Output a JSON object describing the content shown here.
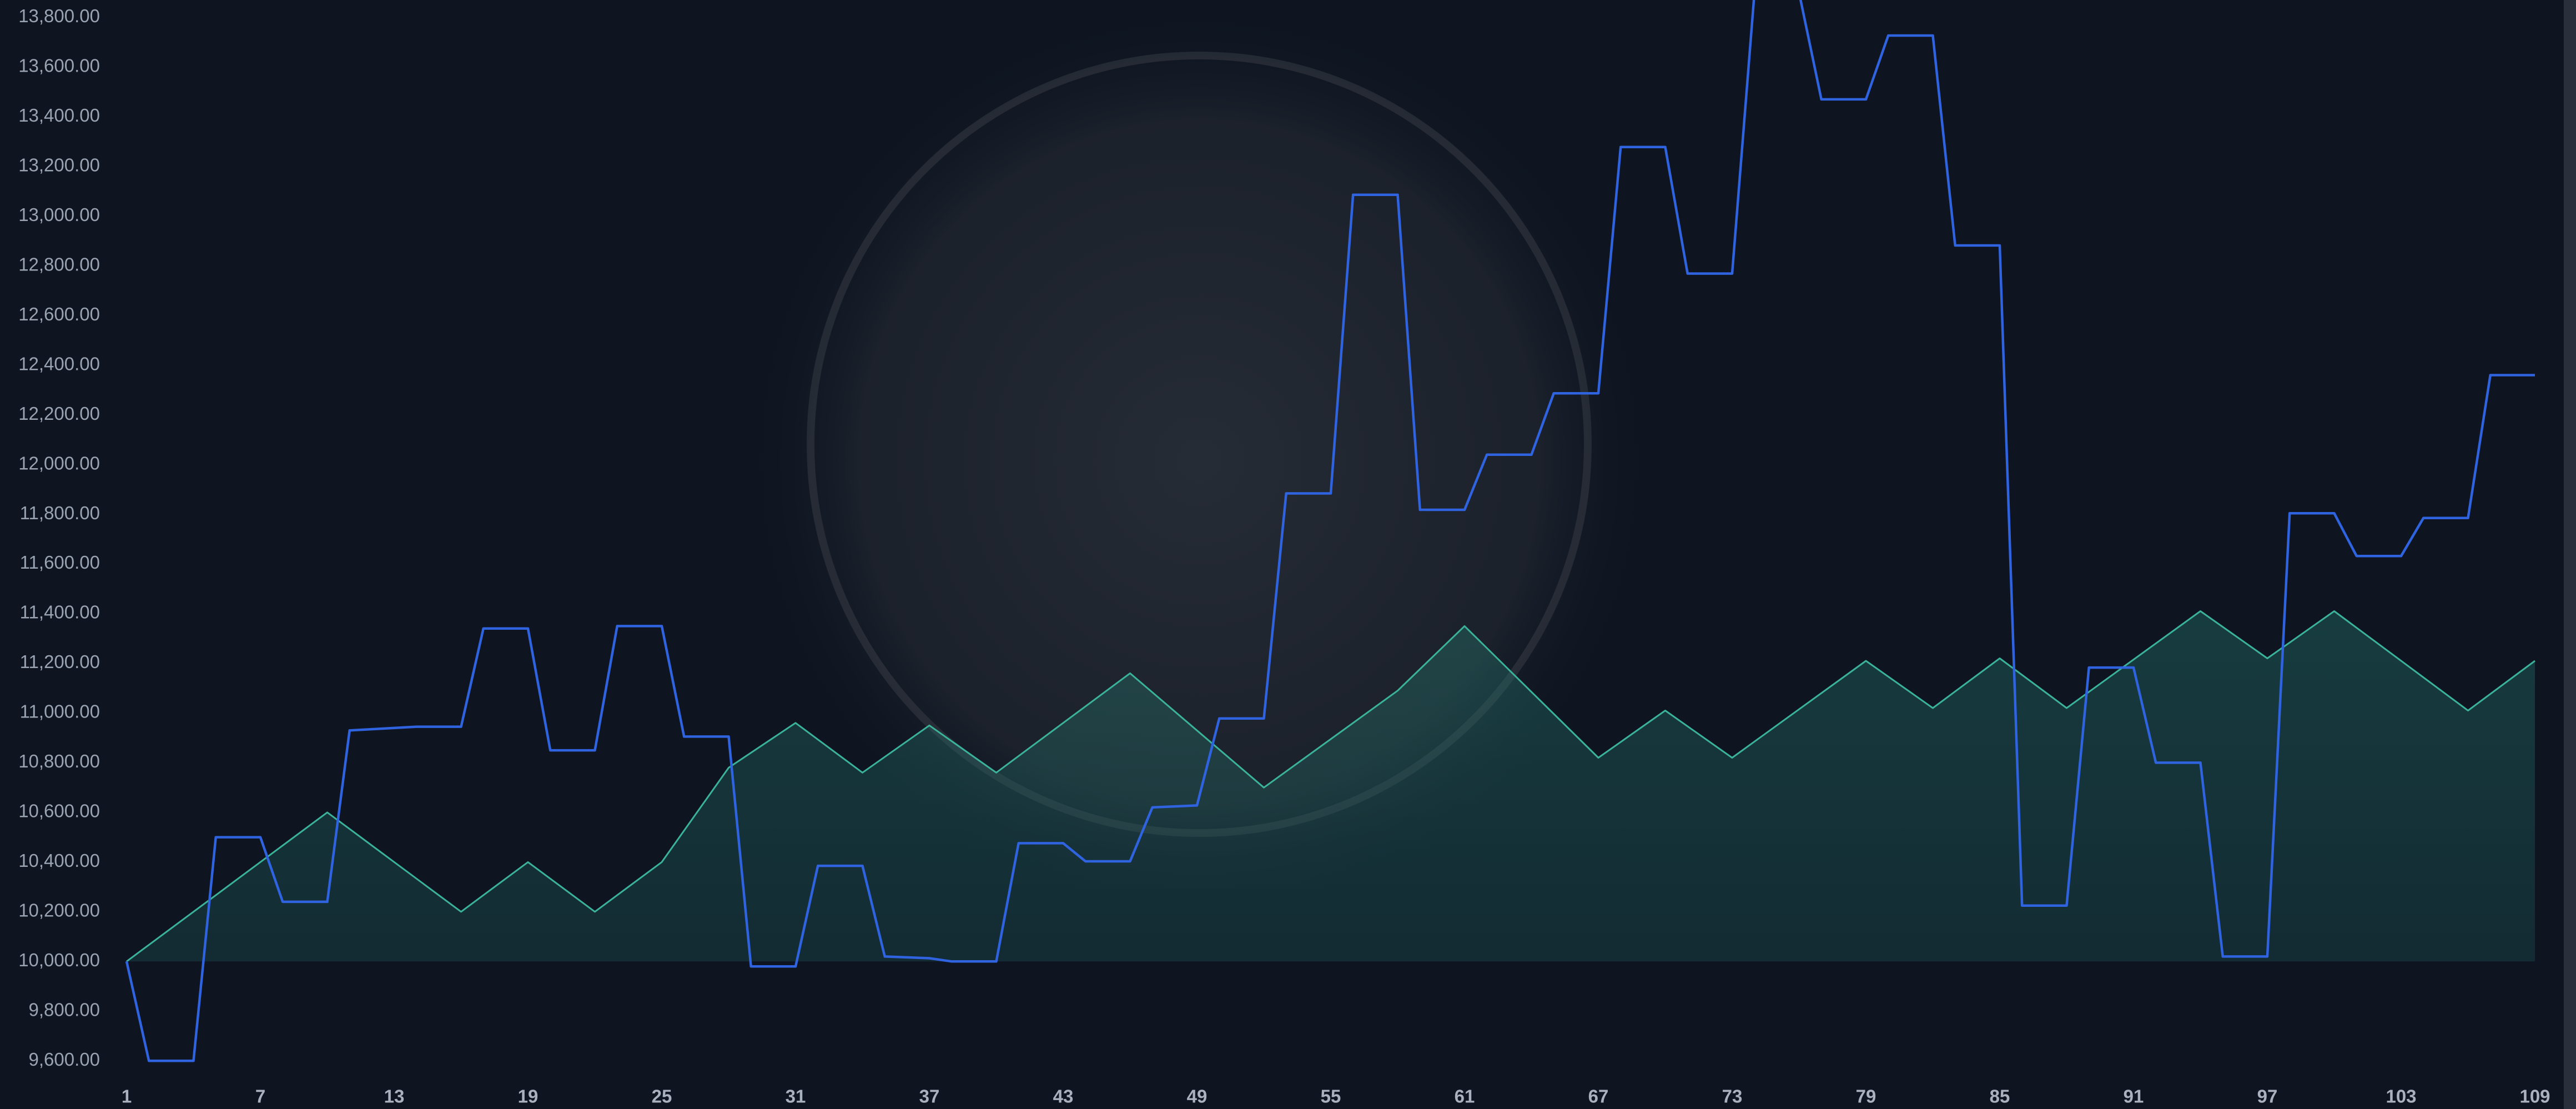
{
  "chart_data": {
    "type": "line",
    "xlim": [
      1,
      109
    ],
    "xticks": [
      1,
      7,
      13,
      19,
      25,
      31,
      37,
      43,
      49,
      55,
      61,
      67,
      73,
      79,
      85,
      91,
      97,
      103,
      109
    ],
    "ylim": [
      9500,
      13870
    ],
    "yticks": [
      {
        "value": 9600,
        "label": "9,600.00"
      },
      {
        "value": 9800,
        "label": "9,800.00"
      },
      {
        "value": 10000,
        "label": "10,000.00"
      },
      {
        "value": 10200,
        "label": "10,200.00"
      },
      {
        "value": 10400,
        "label": "10,400.00"
      },
      {
        "value": 10600,
        "label": "10,600.00"
      },
      {
        "value": 10800,
        "label": "10,800.00"
      },
      {
        "value": 11000,
        "label": "11,000.00"
      },
      {
        "value": 11200,
        "label": "11,200.00"
      },
      {
        "value": 11400,
        "label": "11,400.00"
      },
      {
        "value": 11600,
        "label": "11,600.00"
      },
      {
        "value": 11800,
        "label": "11,800.00"
      },
      {
        "value": 12000,
        "label": "12,000.00"
      },
      {
        "value": 12200,
        "label": "12,200.00"
      },
      {
        "value": 12400,
        "label": "12,400.00"
      },
      {
        "value": 12600,
        "label": "12,600.00"
      },
      {
        "value": 12800,
        "label": "12,800.00"
      },
      {
        "value": 13000,
        "label": "13,000.00"
      },
      {
        "value": 13200,
        "label": "13,200.00"
      },
      {
        "value": 13400,
        "label": "13,400.00"
      },
      {
        "value": 13600,
        "label": "13,600.00"
      },
      {
        "value": 13800,
        "label": "13,800.00"
      }
    ],
    "series": [
      {
        "color": "#3bb39a",
        "fill": true,
        "x": [
          1,
          10,
          16,
          19,
          22,
          25,
          28,
          31,
          34,
          37,
          40,
          46,
          52,
          58,
          61,
          67,
          70,
          73,
          79,
          82,
          85,
          88,
          94,
          97,
          100,
          106,
          109
        ],
        "values": [
          10000,
          10600,
          10200,
          10400,
          10200,
          10400,
          10780,
          10960,
          10760,
          10950,
          10760,
          11160,
          10700,
          11090,
          11350,
          10820,
          11010,
          10820,
          11210,
          11020,
          11220,
          11020,
          11410,
          11220,
          11410,
          11010,
          11210
        ]
      },
      {
        "color": "#2f63e0",
        "fill": false,
        "x": [
          1,
          2,
          4,
          5,
          7,
          8,
          10,
          11,
          14,
          16,
          17,
          19,
          20,
          22,
          23,
          25,
          26,
          28,
          29,
          31,
          32,
          34,
          35,
          37,
          38,
          40,
          41,
          43,
          44,
          46,
          47,
          49,
          50,
          52,
          53,
          55,
          56,
          58,
          59,
          61,
          62,
          64,
          65,
          67,
          68,
          70,
          71,
          73,
          74,
          76,
          77,
          79,
          80,
          82,
          83,
          85,
          86,
          88,
          89,
          91,
          92,
          94,
          95,
          97,
          98,
          100,
          101,
          103,
          104,
          106,
          107,
          109
        ],
        "values": [
          10000,
          9600,
          9600,
          10500,
          10500,
          10240,
          10240,
          10930,
          10945,
          10945,
          11340,
          11340,
          10850,
          10850,
          11350,
          11350,
          10905,
          10905,
          9980,
          9980,
          10385,
          10385,
          10020,
          10013,
          10000,
          10000,
          10476,
          10476,
          10403,
          10403,
          10620,
          10628,
          10978,
          10978,
          11884,
          11884,
          13086,
          13086,
          11818,
          11818,
          12040,
          12040,
          12287,
          12287,
          13278,
          13278,
          12769,
          12769,
          13900,
          13900,
          13470,
          13470,
          13727,
          13727,
          12882,
          12882,
          10225,
          10225,
          11183,
          11183,
          10800,
          10800,
          10020,
          10020,
          11804,
          11804,
          11632,
          11632,
          11785,
          11785,
          12360,
          12360
        ]
      }
    ]
  }
}
